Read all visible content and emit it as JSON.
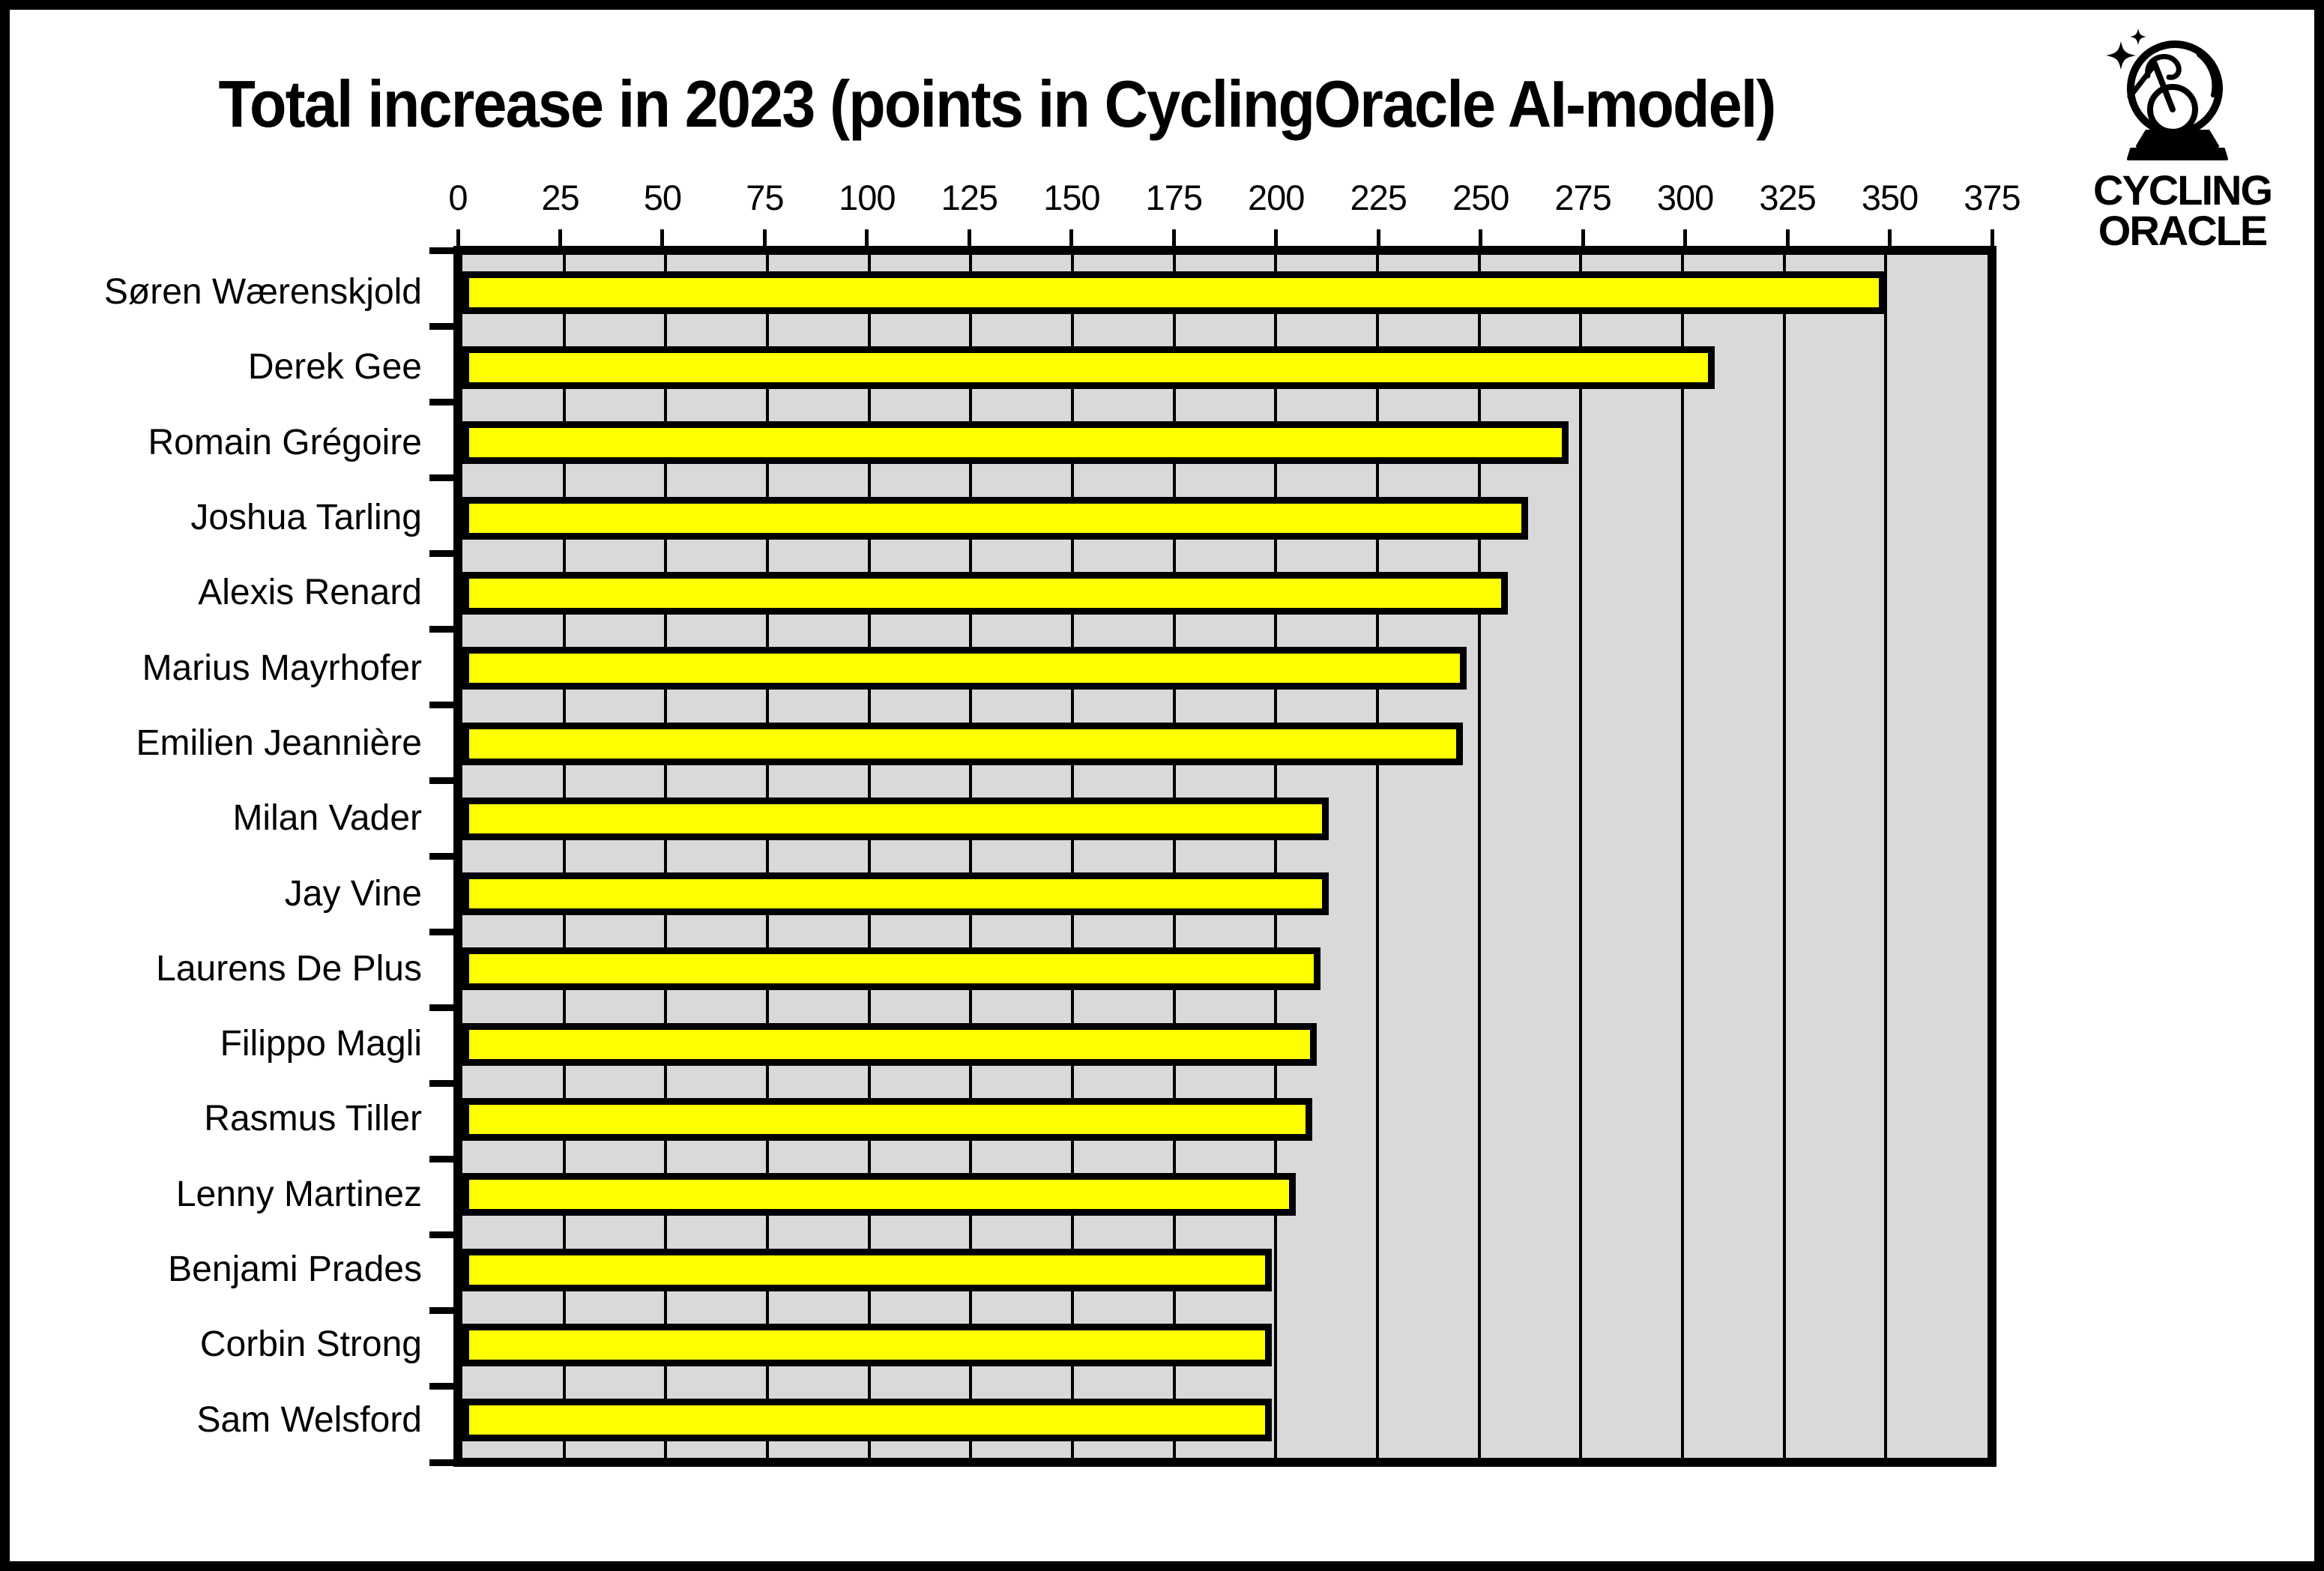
{
  "chart_data": {
    "type": "bar",
    "orientation": "horizontal",
    "title": "Total increase in 2023 (points in CyclingOracle AI-model)",
    "categories": [
      "Søren Wærenskjold",
      "Derek Gee",
      "Romain Grégoire",
      "Joshua Tarling",
      "Alexis Renard",
      "Marius Mayrhofer",
      "Emilien Jeannière",
      "Milan Vader",
      "Jay Vine",
      "Laurens De Plus",
      "Filippo Magli",
      "Rasmus Tiller",
      "Lenny Martinez",
      "Benjami Prades",
      "Corbin Strong",
      "Sam Welsford"
    ],
    "values": [
      350,
      308,
      272,
      262,
      257,
      247,
      246,
      213,
      213,
      211,
      210,
      209,
      205,
      199,
      199,
      199
    ],
    "xlabel": "",
    "ylabel": "",
    "xlim": [
      0,
      375
    ],
    "x_ticks": [
      0,
      25,
      50,
      75,
      100,
      125,
      150,
      175,
      200,
      225,
      250,
      275,
      300,
      325,
      350,
      375
    ],
    "grid": true,
    "legend": false,
    "colors": {
      "bar_fill": "#ffff00",
      "bar_border": "#000000",
      "plot_background": "#d9d9d9",
      "gridline": "#000000",
      "frame": "#000000",
      "text": "#000000"
    }
  },
  "logo": {
    "line1": "CYCLING",
    "line2": "ORACLE",
    "icon": "crystal-ball-bicycle-icon"
  }
}
